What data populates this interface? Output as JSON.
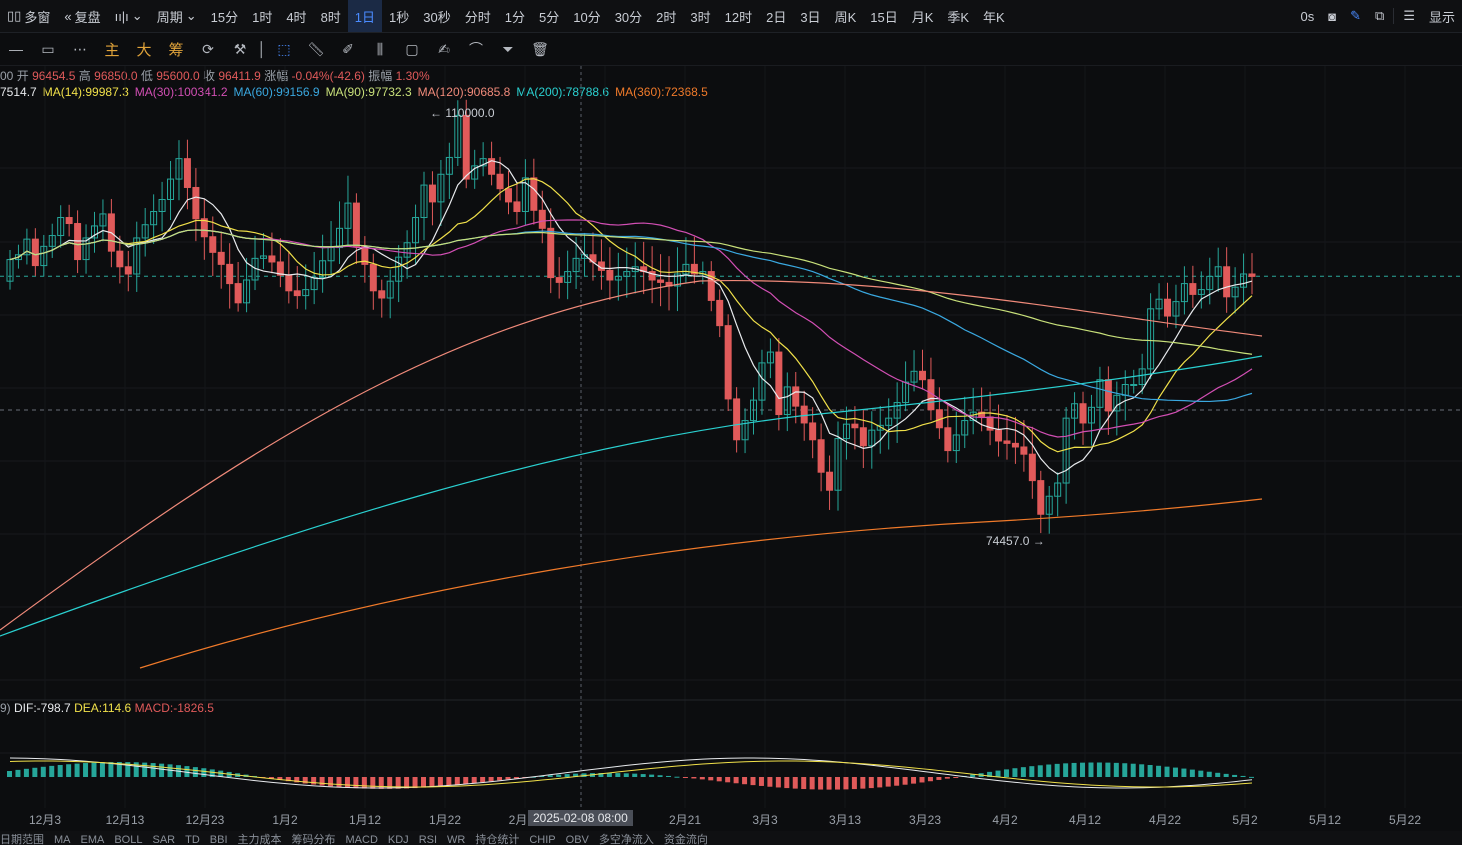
{
  "toolbar": {
    "multi_window": "多窗",
    "replay": "复盘",
    "period_label": "周期",
    "periods": [
      "15分",
      "1时",
      "4时",
      "8时",
      "1日",
      "1秒",
      "30秒",
      "分时",
      "1分",
      "5分",
      "10分",
      "30分",
      "2时",
      "3时",
      "12时",
      "2日",
      "3日",
      "周K",
      "15日",
      "月K",
      "季K",
      "年K"
    ],
    "active_period": "1日",
    "latency": "0s",
    "display_label": "显示"
  },
  "toolbar2": {
    "main": "主",
    "big": "大",
    "chip": "筹"
  },
  "ohlc": {
    "prefix": "00",
    "open_label": "开",
    "open": "96454.5",
    "high_label": "高",
    "high": "96850.0",
    "low_label": "低",
    "low": "95600.0",
    "close_label": "收",
    "close": "96411.9",
    "change_label": "涨幅",
    "change": "-0.04%(-42.6)",
    "amplitude_label": "振幅",
    "amplitude": "1.30%"
  },
  "ma_legend": [
    {
      "text": "7514.7",
      "color": "#e8eaed"
    },
    {
      "text": "MA(14):99987.3",
      "color": "#f0e04a"
    },
    {
      "text": "MA(30):100341.2",
      "color": "#d24fb4"
    },
    {
      "text": "MA(60):99156.9",
      "color": "#3aa8e0"
    },
    {
      "text": "MA(90):97732.3",
      "color": "#c8e07a"
    },
    {
      "text": "MA(120):90685.8",
      "color": "#f08a7a"
    },
    {
      "text": "MA(200):78788.6",
      "color": "#2ad0d0"
    },
    {
      "text": "MA(360):72368.5",
      "color": "#f07a2a"
    }
  ],
  "macd_legend": {
    "prefix": "9)",
    "dif": "DIF:-798.7",
    "dif_color": "#e8eaed",
    "dea": "DEA:114.6",
    "dea_color": "#f0e04a",
    "macd": "MACD:-1826.5",
    "macd_color": "#e05a5a"
  },
  "annotations": {
    "high_mark": "110000.0",
    "low_mark": "74457.0"
  },
  "x_axis": {
    "labels": [
      "12月3",
      "12月13",
      "12月23",
      "1月2",
      "1月12",
      "1月22",
      "2月",
      "2月21",
      "3月3",
      "3月13",
      "3月23",
      "4月2",
      "4月12",
      "4月22",
      "5月2",
      "5月12",
      "5月22"
    ],
    "crosshair_label": "2025-02-08 08:00"
  },
  "bottom_bar": [
    "日期范围",
    "MA",
    "EMA",
    "BOLL",
    "SAR",
    "TD",
    "BBI",
    "主力成本",
    "筹码分布",
    "MACD",
    "KDJ",
    "RSI",
    "WR",
    "持仓统计",
    "CHIP",
    "OBV",
    "多空净流入",
    "资金流向"
  ],
  "colors": {
    "up": "#26a69a",
    "down": "#e05a5a",
    "background": "#0c0d0f",
    "accent": "#4a8bff"
  },
  "chart_data": {
    "type": "candlestick",
    "instrument_interval": "1日",
    "highest": 110000.0,
    "lowest": 74457.0,
    "last_close": 96411.9,
    "moving_averages": {
      "MA14": 99987.3,
      "MA30": 100341.2,
      "MA60": 99156.9,
      "MA90": 97732.3,
      "MA120": 90685.8,
      "MA200": 78788.6,
      "MA360": 72368.5
    },
    "macd": {
      "DIF": -798.7,
      "DEA": 114.6,
      "MACD": -1826.5
    }
  }
}
